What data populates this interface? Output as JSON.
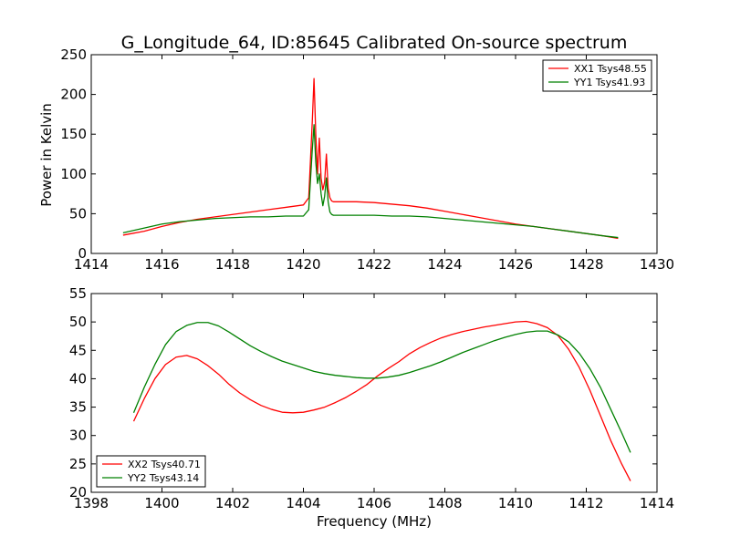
{
  "chart_data": [
    {
      "type": "line",
      "title": "G_Longitude_64, ID:85645 Calibrated On-source spectrum",
      "xlabel": "",
      "ylabel": "Power in Kelvin",
      "xlim": [
        1414,
        1430
      ],
      "ylim": [
        0,
        250
      ],
      "xticks": [
        "1414",
        "1416",
        "1418",
        "1420",
        "1422",
        "1424",
        "1426",
        "1428",
        "1430"
      ],
      "yticks": [
        "0",
        "50",
        "100",
        "150",
        "200",
        "250"
      ],
      "legend_position": "top-right",
      "grid": false,
      "series": [
        {
          "name": "XX1 Tsys48.55",
          "color": "#ff0000",
          "x": [
            1414.9,
            1415.5,
            1416.0,
            1416.5,
            1417.0,
            1417.5,
            1418.0,
            1418.5,
            1419.0,
            1419.5,
            1420.0,
            1420.15,
            1420.25,
            1420.3,
            1420.35,
            1420.4,
            1420.45,
            1420.5,
            1420.55,
            1420.6,
            1420.65,
            1420.7,
            1420.75,
            1420.8,
            1420.85,
            1420.9,
            1421.0,
            1421.5,
            1422.0,
            1422.5,
            1423.0,
            1423.5,
            1424.0,
            1424.5,
            1425.0,
            1425.5,
            1426.0,
            1426.5,
            1427.0,
            1427.5,
            1428.0,
            1428.5,
            1428.9
          ],
          "values": [
            23,
            28,
            34,
            39,
            43,
            46,
            49,
            52,
            55,
            58,
            61,
            70,
            165,
            220,
            150,
            100,
            145,
            95,
            80,
            90,
            125,
            82,
            70,
            66,
            65,
            65,
            65,
            65,
            64,
            62,
            60,
            57,
            53,
            49,
            45,
            41,
            37,
            34,
            31,
            28,
            25,
            22,
            19
          ]
        },
        {
          "name": "YY1 Tsys41.93",
          "color": "#008000",
          "x": [
            1414.9,
            1415.5,
            1416.0,
            1416.5,
            1417.0,
            1417.5,
            1418.0,
            1418.5,
            1419.0,
            1419.5,
            1420.0,
            1420.15,
            1420.25,
            1420.3,
            1420.35,
            1420.4,
            1420.45,
            1420.5,
            1420.55,
            1420.6,
            1420.65,
            1420.7,
            1420.75,
            1420.8,
            1420.85,
            1420.9,
            1421.0,
            1421.5,
            1422.0,
            1422.5,
            1423.0,
            1423.5,
            1424.0,
            1424.5,
            1425.0,
            1425.5,
            1426.0,
            1426.5,
            1427.0,
            1427.5,
            1428.0,
            1428.5,
            1428.9
          ],
          "values": [
            26,
            32,
            37,
            40,
            42,
            44,
            45,
            46,
            46,
            47,
            47,
            55,
            130,
            162,
            115,
            88,
            100,
            75,
            60,
            72,
            95,
            65,
            52,
            49,
            48,
            48,
            48,
            48,
            48,
            47,
            47,
            46,
            44,
            42,
            40,
            38,
            36,
            34,
            31,
            28,
            25,
            22,
            20
          ]
        }
      ]
    },
    {
      "type": "line",
      "title": "",
      "xlabel": "Frequency (MHz)",
      "ylabel": "",
      "xlim": [
        1398,
        1414
      ],
      "ylim": [
        20,
        55
      ],
      "xticks": [
        "1398",
        "1400",
        "1402",
        "1404",
        "1406",
        "1408",
        "1410",
        "1412",
        "1414"
      ],
      "yticks": [
        "20",
        "25",
        "30",
        "35",
        "40",
        "45",
        "50",
        "55"
      ],
      "legend_position": "bottom-left",
      "grid": false,
      "series": [
        {
          "name": "XX2 Tsys40.71",
          "color": "#ff0000",
          "x": [
            1399.2,
            1399.5,
            1399.8,
            1400.1,
            1400.4,
            1400.7,
            1401.0,
            1401.3,
            1401.6,
            1401.9,
            1402.2,
            1402.5,
            1402.8,
            1403.1,
            1403.4,
            1403.7,
            1404.0,
            1404.3,
            1404.6,
            1404.9,
            1405.2,
            1405.5,
            1405.8,
            1406.1,
            1406.4,
            1406.7,
            1407.0,
            1407.3,
            1407.6,
            1407.9,
            1408.2,
            1408.5,
            1408.8,
            1409.1,
            1409.4,
            1409.7,
            1410.0,
            1410.3,
            1410.6,
            1410.9,
            1411.2,
            1411.5,
            1411.8,
            1412.1,
            1412.4,
            1412.7,
            1413.0,
            1413.25
          ],
          "values": [
            32.5,
            36.5,
            40,
            42.5,
            43.8,
            44.1,
            43.5,
            42.3,
            40.8,
            39,
            37.5,
            36.3,
            35.3,
            34.6,
            34.1,
            34,
            34.1,
            34.5,
            35,
            35.8,
            36.7,
            37.8,
            39,
            40.5,
            41.8,
            43,
            44.4,
            45.5,
            46.4,
            47.2,
            47.8,
            48.3,
            48.7,
            49.1,
            49.4,
            49.7,
            50,
            50.1,
            49.7,
            49,
            47.6,
            45.2,
            42,
            38,
            33.5,
            29,
            25,
            22
          ]
        },
        {
          "name": "YY2 Tsys43.14",
          "color": "#008000",
          "x": [
            1399.2,
            1399.5,
            1399.8,
            1400.1,
            1400.4,
            1400.7,
            1401.0,
            1401.3,
            1401.6,
            1401.9,
            1402.2,
            1402.5,
            1402.8,
            1403.1,
            1403.4,
            1403.7,
            1404.0,
            1404.3,
            1404.6,
            1404.9,
            1405.2,
            1405.5,
            1405.8,
            1406.1,
            1406.4,
            1406.7,
            1407.0,
            1407.3,
            1407.6,
            1407.9,
            1408.2,
            1408.5,
            1408.8,
            1409.1,
            1409.4,
            1409.7,
            1410.0,
            1410.3,
            1410.6,
            1410.9,
            1411.2,
            1411.5,
            1411.8,
            1412.1,
            1412.4,
            1412.7,
            1413.0,
            1413.25
          ],
          "values": [
            34,
            38.5,
            42.5,
            46,
            48.3,
            49.4,
            49.9,
            49.9,
            49.3,
            48.2,
            47,
            45.8,
            44.8,
            43.9,
            43.1,
            42.5,
            41.9,
            41.3,
            40.9,
            40.6,
            40.4,
            40.2,
            40.1,
            40.1,
            40.3,
            40.6,
            41.1,
            41.7,
            42.3,
            43,
            43.8,
            44.6,
            45.3,
            46,
            46.7,
            47.3,
            47.8,
            48.2,
            48.4,
            48.4,
            47.7,
            46.5,
            44.5,
            41.8,
            38.5,
            34.5,
            30.5,
            27
          ]
        }
      ]
    }
  ]
}
